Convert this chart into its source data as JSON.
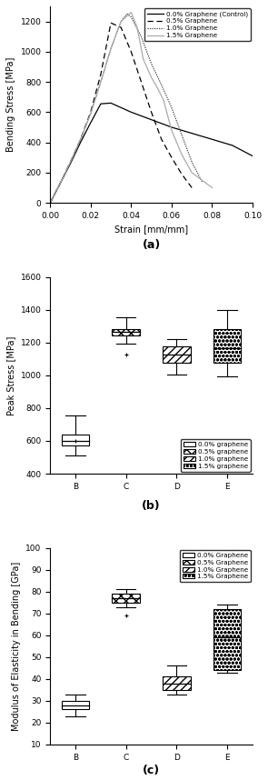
{
  "fig_width": 2.95,
  "fig_height": 8.58,
  "bg_color": "#ffffff",
  "plot_a": {
    "xlabel": "Strain [mm/mm]",
    "ylabel": "Bending Stress [MPa]",
    "xlim": [
      0.0,
      0.1
    ],
    "ylim": [
      0,
      1300
    ],
    "yticks": [
      0,
      200,
      400,
      600,
      800,
      1000,
      1200
    ],
    "xticks": [
      0.0,
      0.02,
      0.04,
      0.06,
      0.08,
      0.1
    ],
    "label": "(a)",
    "legend_labels": [
      "0.0% Graphene (Control)",
      "0.5% Graphene",
      "1.0% Graphene",
      "1.5% Graphene"
    ]
  },
  "plot_b": {
    "ylabel": "Peak Stress [MPa]",
    "ylim": [
      400,
      1600
    ],
    "yticks": [
      400,
      600,
      800,
      1000,
      1200,
      1400,
      1600
    ],
    "categories": [
      "B",
      "C",
      "D",
      "E"
    ],
    "label": "(b)",
    "legend_labels": [
      "0.0% graphene",
      "0.5% graphene",
      "1.0% graphene",
      "1.5% graphene"
    ],
    "boxes": [
      {
        "q1": 570,
        "median": 600,
        "q3": 640,
        "whislo": 510,
        "whishi": 755,
        "fliers": [
          600
        ]
      },
      {
        "q1": 1245,
        "median": 1265,
        "q3": 1285,
        "whislo": 1195,
        "whishi": 1355,
        "fliers": [
          1125
        ]
      },
      {
        "q1": 1075,
        "median": 1130,
        "q3": 1180,
        "whislo": 1005,
        "whishi": 1220,
        "fliers": []
      },
      {
        "q1": 1075,
        "median": 1165,
        "q3": 1280,
        "whislo": 995,
        "whishi": 1400,
        "fliers": []
      }
    ]
  },
  "plot_c": {
    "ylabel": "Modulus of Elasticity in Bending [GPa]",
    "ylim": [
      10,
      100
    ],
    "yticks": [
      10,
      20,
      30,
      40,
      50,
      60,
      70,
      80,
      90,
      100
    ],
    "categories": [
      "B",
      "C",
      "D",
      "E"
    ],
    "label": "(c)",
    "legend_labels": [
      "0.0% Graphene",
      "0.5% Graphene",
      "1.0% Graphene",
      "1.5% Graphene"
    ],
    "boxes": [
      {
        "q1": 26,
        "median": 28,
        "q3": 30,
        "whislo": 23,
        "whishi": 33,
        "fliers": []
      },
      {
        "q1": 75,
        "median": 77,
        "q3": 79,
        "whislo": 73,
        "whishi": 81,
        "fliers": [
          69
        ]
      },
      {
        "q1": 35,
        "median": 38,
        "q3": 41,
        "whislo": 33,
        "whishi": 46,
        "fliers": []
      },
      {
        "q1": 44,
        "median": 59,
        "q3": 72,
        "whislo": 43,
        "whishi": 74,
        "fliers": []
      }
    ]
  }
}
